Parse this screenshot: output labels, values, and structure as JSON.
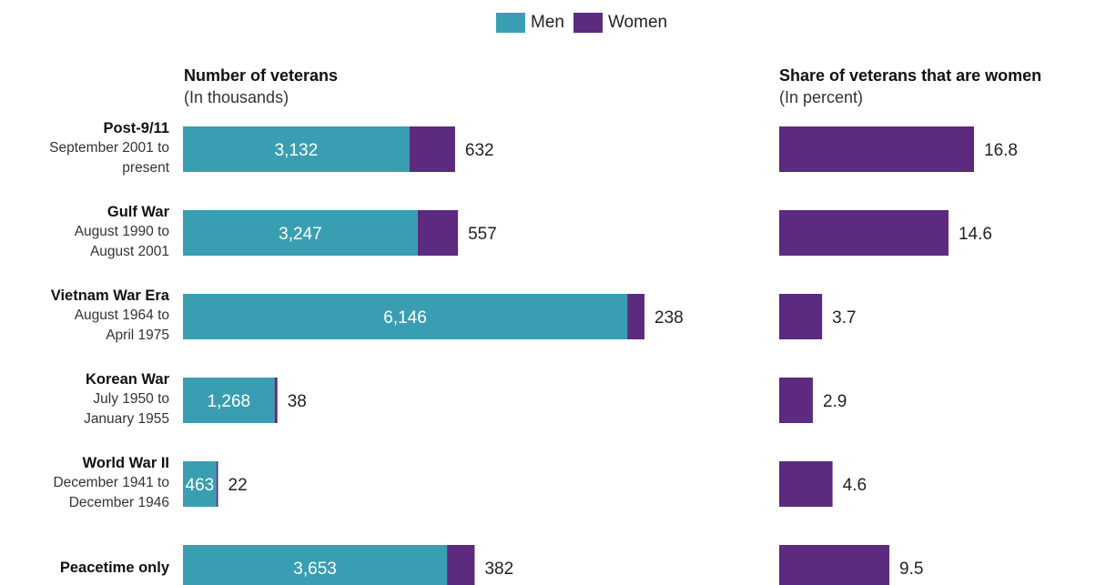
{
  "legend": {
    "men_label": "Men",
    "women_label": "Women"
  },
  "colors": {
    "men": "#3a9eb2",
    "women": "#5c2a7e"
  },
  "left_panel": {
    "title": "Number of veterans",
    "subtitle": "(In thousands)"
  },
  "right_panel": {
    "title": "Share of veterans that are women",
    "subtitle": "(In percent)"
  },
  "categories": [
    {
      "name": "Post-9/11",
      "detail_1": "September 2001 to",
      "detail_2": "present"
    },
    {
      "name": "Gulf War",
      "detail_1": "August 1990 to",
      "detail_2": "August 2001"
    },
    {
      "name": "Vietnam War Era",
      "detail_1": "August 1964 to",
      "detail_2": "April 1975"
    },
    {
      "name": "Korean War",
      "detail_1": "July 1950 to",
      "detail_2": "January 1955"
    },
    {
      "name": "World War II",
      "detail_1": "December 1941 to",
      "detail_2": "December 1946"
    },
    {
      "name": "Peacetime only",
      "detail_1": "",
      "detail_2": ""
    }
  ],
  "chart_data": [
    {
      "type": "bar",
      "orientation": "horizontal",
      "stacked": true,
      "title": "Number of veterans",
      "subtitle": "(In thousands)",
      "categories": [
        "Post-9/11",
        "Gulf War",
        "Vietnam War Era",
        "Korean War",
        "World War II",
        "Peacetime only"
      ],
      "series": [
        {
          "name": "Men",
          "values": [
            3132,
            3247,
            6146,
            1268,
            463,
            3653
          ],
          "labels": [
            "3,132",
            "3,247",
            "6,146",
            "1,268",
            "463",
            "3,653"
          ]
        },
        {
          "name": "Women",
          "values": [
            632,
            557,
            238,
            38,
            22,
            382
          ],
          "labels": [
            "632",
            "557",
            "238",
            "38",
            "22",
            "382"
          ]
        }
      ],
      "xlim": [
        0,
        6384
      ],
      "legend": "top-center",
      "grid": false
    },
    {
      "type": "bar",
      "orientation": "horizontal",
      "title": "Share of veterans that are women",
      "subtitle": "(In percent)",
      "categories": [
        "Post-9/11",
        "Gulf War",
        "Vietnam War Era",
        "Korean War",
        "World War II",
        "Peacetime only"
      ],
      "series": [
        {
          "name": "Women",
          "values": [
            16.8,
            14.6,
            3.7,
            2.9,
            4.6,
            9.5
          ],
          "labels": [
            "16.8",
            "14.6",
            "3.7",
            "2.9",
            "4.6",
            "9.5"
          ]
        }
      ],
      "xlim": [
        0,
        16.8
      ],
      "grid": false
    }
  ]
}
